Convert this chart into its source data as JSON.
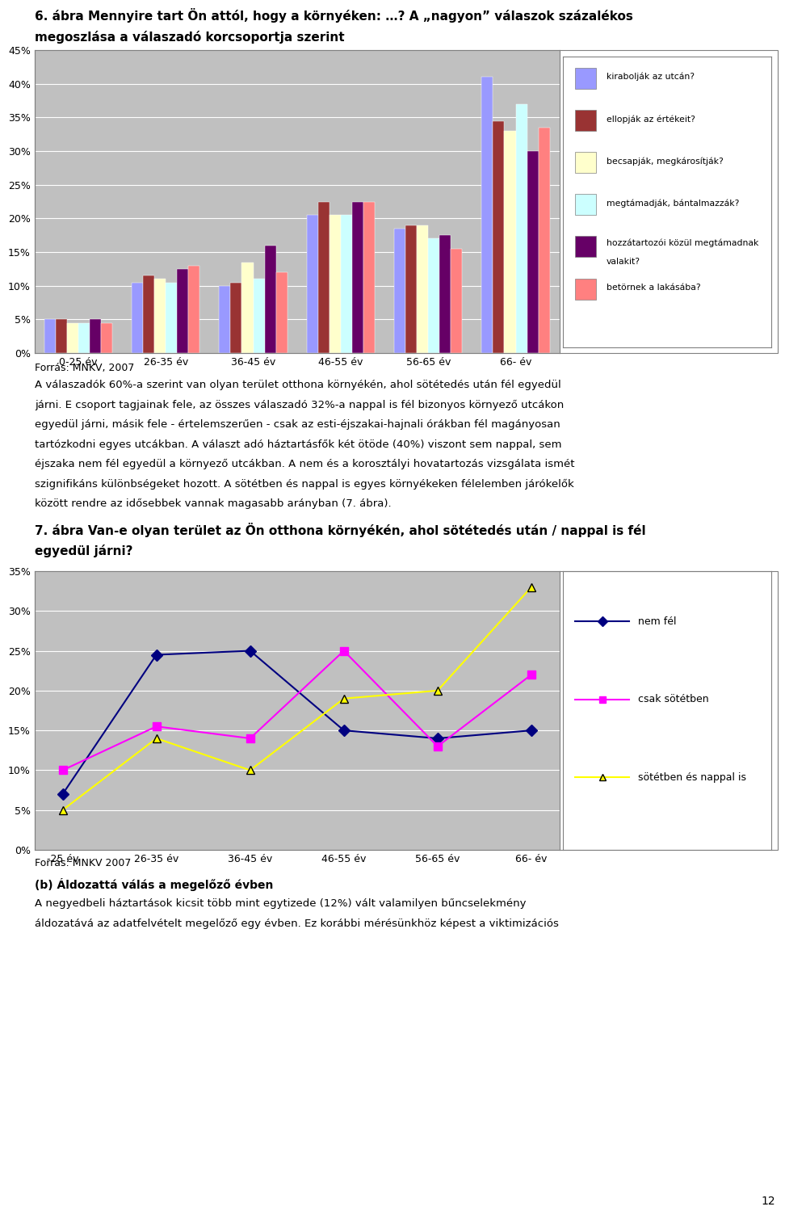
{
  "title_line1": "6. ábra Mennyire tart Ön attól, hogy a környéken: …? A „nagyon” válaszok százalékos",
  "title_line2": "megoszlása a válaszadó korcsoportja szerint",
  "bar_categories": [
    "0-25 év",
    "26-35 év",
    "36-45 év",
    "46-55 év",
    "56-65 év",
    "66- év"
  ],
  "bar_series": {
    "kirabolják az utcán?": [
      5.0,
      10.5,
      10.0,
      20.5,
      18.5,
      41.0
    ],
    "ellopják az értékeit?": [
      5.0,
      11.5,
      10.5,
      22.5,
      19.0,
      34.5
    ],
    "becsapják, megkárosítják?": [
      4.5,
      11.0,
      13.5,
      20.5,
      19.0,
      33.0
    ],
    "megtámadják, bántalmazzák?": [
      4.5,
      10.5,
      11.0,
      20.5,
      17.0,
      37.0
    ],
    "hozzátartozói közül megtámadnak valakit?": [
      5.0,
      12.5,
      16.0,
      22.5,
      17.5,
      30.0
    ],
    "betörnek a lakásába?": [
      4.5,
      13.0,
      12.0,
      22.5,
      15.5,
      33.5
    ]
  },
  "bar_colors": [
    "#9999FF",
    "#993333",
    "#FFFFCC",
    "#CCFFFF",
    "#660066",
    "#FF8080"
  ],
  "bar_ylim": [
    0,
    45
  ],
  "bar_yticks": [
    0,
    5,
    10,
    15,
    20,
    25,
    30,
    35,
    40,
    45
  ],
  "bar_yticklabels": [
    "0%",
    "5%",
    "10%",
    "15%",
    "20%",
    "25%",
    "30%",
    "35%",
    "40%",
    "45%"
  ],
  "source1": "Forrás: MNKV, 2007",
  "text_para1_lines": [
    "A válaszadók 60%-a szerint van olyan terület otthona környékén, ahol sötétedés után fél egyedül",
    "járni. E csoport tagjainak fele, az összes válaszadó 32%-a nappal is fél bizonyos környező utcákon",
    "egyedül járni, másik fele - értelemszerűen - csak az esti-éjszakai-hajnali órákban fél magányosan",
    "tartózkodni egyes utcákban. A választ adó háztartásfők két ötöde (40%) viszont sem nappal, sem",
    "éjszaka nem fél egyedül a környező utcákban. A nem és a korosztályi hovatartozás vizsgálata ismét",
    "szignifikáns különbségeket hozott. A sötétben és nappal is egyes környékeken félelemben járókelők",
    "között rendre az idősebbek vannak magasabb arányban (7. ábra)."
  ],
  "title2_line1": "7. ábra Van-e olyan terület az Ön otthona környékén, ahol sötétedés után / nappal is fél",
  "title2_line2": "egyedül járni?",
  "line_categories": [
    "-25 év",
    "26-35 év",
    "36-45 év",
    "46-55 év",
    "56-65 év",
    "66- év"
  ],
  "line_series": {
    "nem fél": [
      7.0,
      24.5,
      25.0,
      15.0,
      14.0,
      15.0
    ],
    "csak sötétben": [
      10.0,
      15.5,
      14.0,
      25.0,
      13.0,
      22.0
    ],
    "sötétben és nappal is": [
      5.0,
      14.0,
      10.0,
      19.0,
      20.0,
      33.0
    ]
  },
  "line_colors": [
    "#000080",
    "#FF00FF",
    "#FFFF00"
  ],
  "line_markers": [
    "D",
    "s",
    "^"
  ],
  "line_ylim": [
    0,
    35
  ],
  "line_yticks": [
    0,
    5,
    10,
    15,
    20,
    25,
    30,
    35
  ],
  "line_yticklabels": [
    "0%",
    "5%",
    "10%",
    "15%",
    "20%",
    "25%",
    "30%",
    "35%"
  ],
  "source2": "Forrás: MNKV 2007",
  "text_para2_bold": "(b) Áldozattá válás a megelőző évben",
  "text_para3_lines": [
    "A negyedbeli háztartások kicsit több mint egytizede (12%) vált valamilyen bűncselekmény",
    "áldozatává az adatfelvételt megelőző egy évben. Ez korábbi mérésünkhöz képest a viktimizációs"
  ],
  "page_number": "12",
  "chart_bg": "#C0C0C0",
  "chart_border": "#808080",
  "legend_border": "#808080",
  "grid_color": "white"
}
